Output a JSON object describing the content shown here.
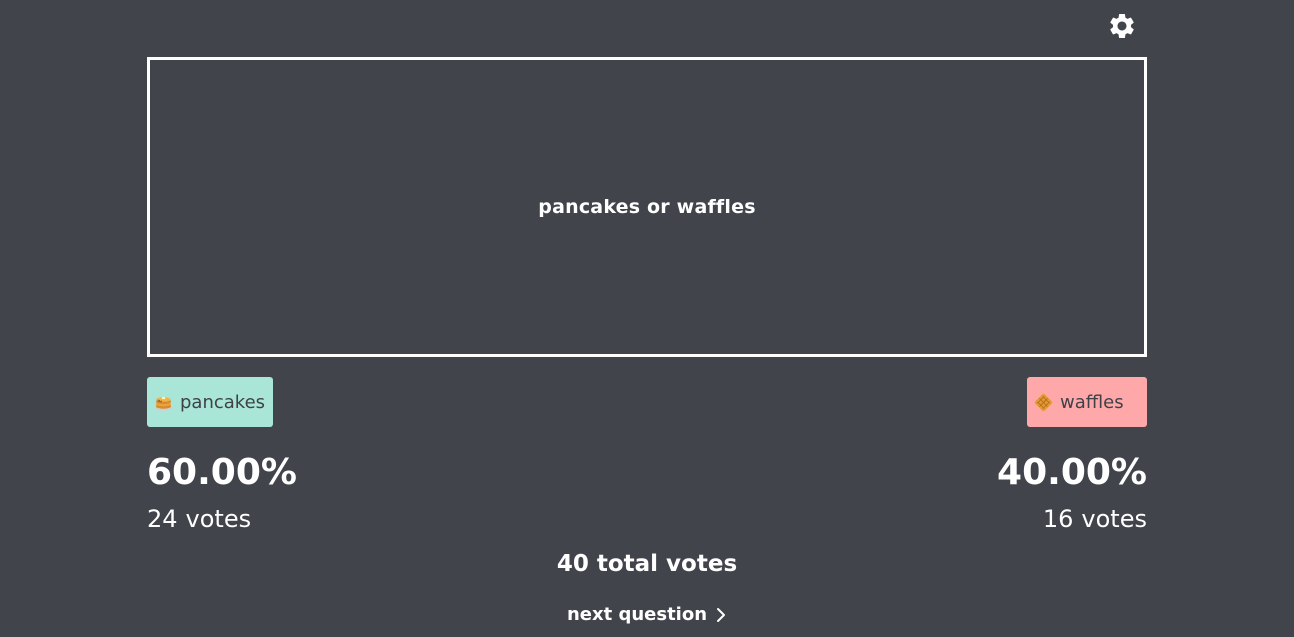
{
  "settings": {
    "icon": "gear-icon"
  },
  "question": {
    "text": "pancakes or waffles"
  },
  "options": [
    {
      "label": "pancakes",
      "icon": "pancakes-emoji-icon",
      "color": "#a9e6d8",
      "percent": "60.00%",
      "votes_count": "24",
      "votes_word": "votes"
    },
    {
      "label": "waffles",
      "icon": "waffle-emoji-icon",
      "color": "#ffa8aa",
      "percent": "40.00%",
      "votes_count": "16",
      "votes_word": "votes"
    }
  ],
  "total": {
    "text": "40 total votes"
  },
  "next": {
    "label": "next question",
    "icon": "chevron-right-icon"
  },
  "colors": {
    "background": "#42444c",
    "text": "#ffffff"
  }
}
